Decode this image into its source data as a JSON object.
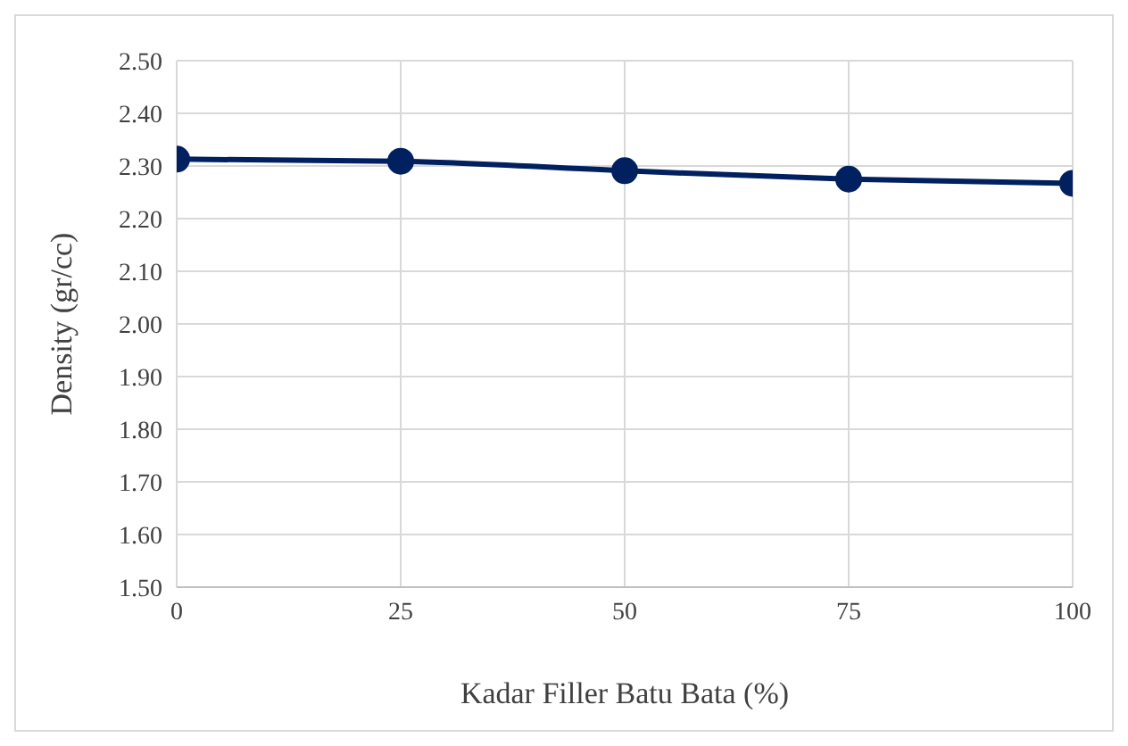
{
  "chart_data": {
    "type": "line",
    "xlabel": "Kadar Filler Batu Bata (%)",
    "ylabel": "Density (gr/cc)",
    "x": [
      0,
      25,
      50,
      75,
      100
    ],
    "series": [
      {
        "color": "#002060",
        "values": [
          2.313,
          2.309,
          2.291,
          2.275,
          2.267
        ]
      }
    ],
    "xlim": [
      0,
      100
    ],
    "xticks": [
      0,
      25,
      50,
      75,
      100
    ],
    "ylim": [
      1.5,
      2.5
    ],
    "yticks": [
      {
        "value": 1.5,
        "label": "1.50"
      },
      {
        "value": 1.6,
        "label": "1.60"
      },
      {
        "value": 1.7,
        "label": "1.70"
      },
      {
        "value": 1.8,
        "label": "1.80"
      },
      {
        "value": 1.9,
        "label": "1.90"
      },
      {
        "value": 2.0,
        "label": "2.00"
      },
      {
        "value": 2.1,
        "label": "2.10"
      },
      {
        "value": 2.2,
        "label": "2.20"
      },
      {
        "value": 2.3,
        "label": "2.30"
      },
      {
        "value": 2.4,
        "label": "2.40"
      },
      {
        "value": 2.5,
        "label": "2.50"
      }
    ],
    "grid": true,
    "marker": "circle",
    "line_style": "solid",
    "legend": false
  }
}
